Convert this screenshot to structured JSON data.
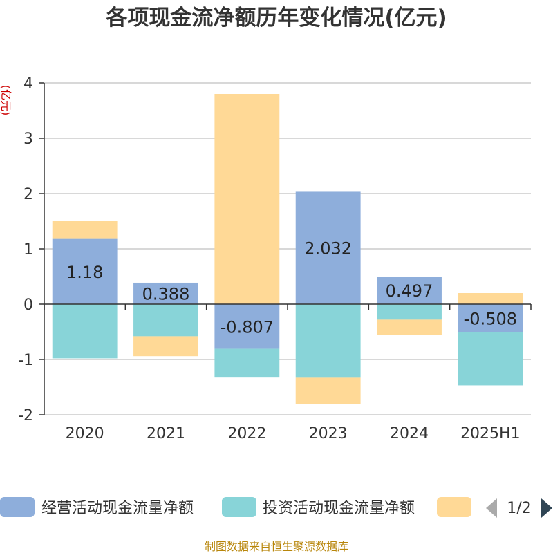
{
  "title": "各项现金流净额历年变化情况(亿元)",
  "source": "制图数据来自恒生聚源数据库",
  "colors": {
    "operating": "#8eaedb",
    "investing": "#88d4d8",
    "financing": "#ffd996",
    "axis": "#333333",
    "grid": "#cccccc",
    "pager_active": "#2f4554",
    "pager_inactive": "#aaaaaa"
  },
  "legend": {
    "page": "1/2",
    "prev_icon": "triangle-left-icon",
    "next_icon": "triangle-right-icon"
  },
  "chart_data": {
    "type": "bar",
    "stacked": true,
    "title": "各项现金流净额历年变化情况(亿元)",
    "ylabel": "(亿元)",
    "xlabel": "",
    "ylim": [
      -2,
      4
    ],
    "yticks": [
      -2,
      -1,
      0,
      1,
      2,
      3,
      4
    ],
    "grid": true,
    "legend_position": "bottom",
    "categories": [
      "2020",
      "2021",
      "2022",
      "2023",
      "2024",
      "2025H1"
    ],
    "series": [
      {
        "name": "经营活动现金流量净额",
        "values": [
          1.18,
          0.388,
          -0.807,
          2.032,
          0.497,
          -0.508
        ],
        "labels": [
          "1.18",
          "0.388",
          "-0.807",
          "2.032",
          "0.497",
          "-0.508"
        ]
      },
      {
        "name": "投资活动现金流量净额",
        "values": [
          -0.98,
          -0.58,
          -0.52,
          -1.33,
          -0.28,
          -0.96
        ]
      },
      {
        "name": "",
        "values": [
          0.32,
          -0.36,
          3.8,
          -0.48,
          -0.28,
          0.2
        ]
      }
    ]
  }
}
